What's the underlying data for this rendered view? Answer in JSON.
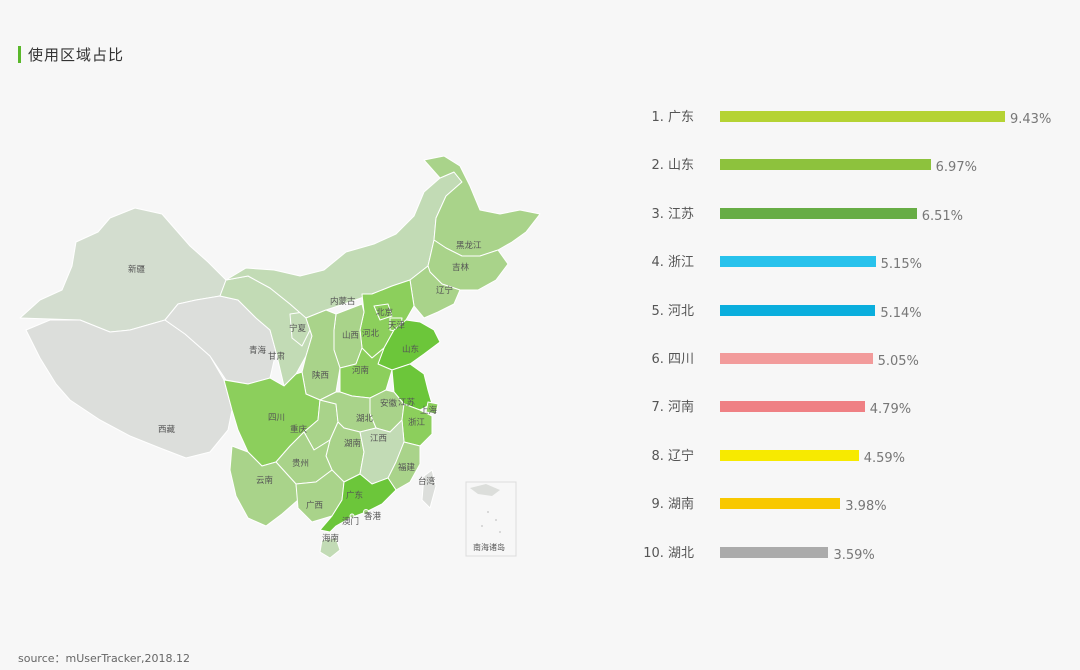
{
  "header": {
    "title": "使用区域占比"
  },
  "map": {
    "provinces": [
      {
        "id": "xinjiang",
        "label": "新疆"
      },
      {
        "id": "xizang",
        "label": "西藏"
      },
      {
        "id": "qinghai",
        "label": "青海"
      },
      {
        "id": "gansu",
        "label": "甘肃"
      },
      {
        "id": "ningxia",
        "label": "宁夏"
      },
      {
        "id": "neimenggu",
        "label": "内蒙古"
      },
      {
        "id": "heilongjiang",
        "label": "黑龙江"
      },
      {
        "id": "jilin",
        "label": "吉林"
      },
      {
        "id": "liaoning",
        "label": "辽宁"
      },
      {
        "id": "beijing",
        "label": "北京"
      },
      {
        "id": "tianjin",
        "label": "天津"
      },
      {
        "id": "hebei",
        "label": "河北"
      },
      {
        "id": "shanxi",
        "label": "山西"
      },
      {
        "id": "shandong",
        "label": "山东"
      },
      {
        "id": "shaanxi",
        "label": "陕西"
      },
      {
        "id": "henan",
        "label": "河南"
      },
      {
        "id": "jiangsu",
        "label": "江苏"
      },
      {
        "id": "anhui",
        "label": "安徽"
      },
      {
        "id": "shanghai",
        "label": "上海"
      },
      {
        "id": "zhejiang",
        "label": "浙江"
      },
      {
        "id": "sichuan",
        "label": "四川"
      },
      {
        "id": "chongqing",
        "label": "重庆"
      },
      {
        "id": "hubei",
        "label": "湖北"
      },
      {
        "id": "hunan",
        "label": "湖南"
      },
      {
        "id": "jiangxi",
        "label": "江西"
      },
      {
        "id": "guizhou",
        "label": "贵州"
      },
      {
        "id": "fujian",
        "label": "福建"
      },
      {
        "id": "yunnan",
        "label": "云南"
      },
      {
        "id": "guangxi",
        "label": "广西"
      },
      {
        "id": "guangdong",
        "label": "广东"
      },
      {
        "id": "taiwan",
        "label": "台湾"
      },
      {
        "id": "hongkong",
        "label": "香港"
      },
      {
        "id": "macau",
        "label": "澳门"
      },
      {
        "id": "hainan",
        "label": "海南"
      }
    ],
    "inset_label": "南海诸岛",
    "colors": {
      "level_top": "#6cc63a",
      "level_high": "#8ccf5c",
      "level_mid": "#a9d38a",
      "level_low": "#c2dbb5",
      "level_lowest": "#d3ddcf",
      "level_none": "#dcdedb",
      "stroke": "#ffffff"
    }
  },
  "chart_data": {
    "type": "bar",
    "orientation": "horizontal",
    "title": "",
    "categories": [
      "广东",
      "山东",
      "江苏",
      "浙江",
      "河北",
      "四川",
      "河南",
      "辽宁",
      "湖南",
      "湖北"
    ],
    "ranks": [
      "1.",
      "2.",
      "3.",
      "4.",
      "5.",
      "6.",
      "7.",
      "8.",
      "9.",
      "10."
    ],
    "values": [
      9.43,
      6.97,
      6.51,
      5.15,
      5.14,
      5.05,
      4.79,
      4.59,
      3.98,
      3.59
    ],
    "value_labels": [
      "9.43%",
      "6.97%",
      "6.51%",
      "5.15%",
      "5.14%",
      "5.05%",
      "4.79%",
      "4.59%",
      "3.98%",
      "3.59%"
    ],
    "colors": [
      "#b5d334",
      "#8dc23d",
      "#67ad45",
      "#28c2ec",
      "#0aaedd",
      "#f29b9b",
      "#ef8084",
      "#f7ea00",
      "#f8c800",
      "#ababab"
    ],
    "xlim": [
      0,
      9.43
    ],
    "xlabel": "",
    "ylabel": ""
  },
  "footer": {
    "source": "source：mUserTracker,2018.12"
  }
}
